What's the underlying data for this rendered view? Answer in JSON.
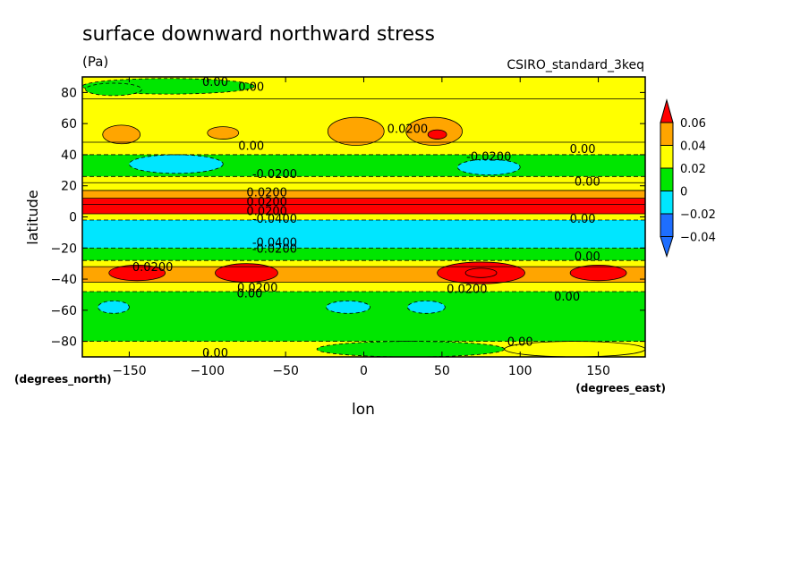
{
  "chart_data": {
    "type": "heatmap",
    "title": "surface downward northward stress",
    "units": "(Pa)",
    "dataset": "CSIRO_standard_3keq",
    "xlabel": "lon",
    "ylabel": "latitude",
    "x_units": "(degrees_east)",
    "y_units": "(degrees_north)",
    "xlim": [
      -180,
      180
    ],
    "ylim": [
      -90,
      90
    ],
    "x_ticks": [
      -150,
      -100,
      -50,
      0,
      50,
      100,
      150
    ],
    "y_ticks": [
      80,
      60,
      40,
      20,
      0,
      -20,
      -40,
      -60,
      -80
    ],
    "colorbar": {
      "labels": [
        "0.06",
        "0.04",
        "0.02",
        "0",
        "−0.02",
        "−0.04"
      ],
      "levels": [
        -0.04,
        -0.02,
        0,
        0.02,
        0.04,
        0.06
      ],
      "colors": [
        "#1e6eff",
        "#00e6ff",
        "#00e600",
        "#ffff00",
        "#ffa500",
        "#ff0000"
      ],
      "extend": "both"
    },
    "bands": [
      {
        "lat_top": 90,
        "lat_bottom": 76,
        "value": 0.0
      },
      {
        "lat_top": 76,
        "lat_bottom": 48,
        "value": 0.01
      },
      {
        "lat_top": 48,
        "lat_bottom": 40,
        "value": 0.0
      },
      {
        "lat_top": 40,
        "lat_bottom": 26,
        "value": -0.01
      },
      {
        "lat_top": 26,
        "lat_bottom": 22,
        "value": 0.0
      },
      {
        "lat_top": 22,
        "lat_bottom": 17,
        "value": 0.01
      },
      {
        "lat_top": 17,
        "lat_bottom": 12,
        "value": 0.03
      },
      {
        "lat_top": 12,
        "lat_bottom": 8,
        "value": 0.045
      },
      {
        "lat_top": 8,
        "lat_bottom": 2,
        "value": 0.065
      },
      {
        "lat_top": 2,
        "lat_bottom": -2,
        "value": 0.0
      },
      {
        "lat_top": -2,
        "lat_bottom": -20,
        "value": -0.03
      },
      {
        "lat_top": -20,
        "lat_bottom": -28,
        "value": -0.01
      },
      {
        "lat_top": -28,
        "lat_bottom": -32,
        "value": 0.01
      },
      {
        "lat_top": -32,
        "lat_bottom": -42,
        "value": 0.03
      },
      {
        "lat_top": -42,
        "lat_bottom": -48,
        "value": 0.01
      },
      {
        "lat_top": -48,
        "lat_bottom": -80,
        "value": -0.01
      },
      {
        "lat_top": -80,
        "lat_bottom": -90,
        "value": 0.0
      }
    ],
    "features": [
      {
        "lon": -155,
        "lat": 53,
        "rx": 12,
        "ry": 6,
        "value": 0.03
      },
      {
        "lon": -90,
        "lat": 54,
        "rx": 10,
        "ry": 4,
        "value": 0.03
      },
      {
        "lon": -5,
        "lat": 55,
        "rx": 18,
        "ry": 9,
        "value": 0.03
      },
      {
        "lon": 45,
        "lat": 55,
        "rx": 18,
        "ry": 9,
        "value": 0.03
      },
      {
        "lon": 47,
        "lat": 53,
        "rx": 6,
        "ry": 3,
        "value": 0.05
      },
      {
        "lon": -120,
        "lat": 34,
        "rx": 30,
        "ry": 6,
        "value": -0.03
      },
      {
        "lon": 80,
        "lat": 32,
        "rx": 20,
        "ry": 5,
        "value": -0.03
      },
      {
        "lon": -145,
        "lat": -36,
        "rx": 18,
        "ry": 5,
        "value": 0.05
      },
      {
        "lon": -75,
        "lat": -36,
        "rx": 20,
        "ry": 6,
        "value": 0.05
      },
      {
        "lon": 75,
        "lat": -36,
        "rx": 28,
        "ry": 7,
        "value": 0.05
      },
      {
        "lon": 75,
        "lat": -36,
        "rx": 10,
        "ry": 3,
        "value": 0.065
      },
      {
        "lon": 150,
        "lat": -36,
        "rx": 18,
        "ry": 5,
        "value": 0.05
      },
      {
        "lon": -160,
        "lat": -58,
        "rx": 10,
        "ry": 4,
        "value": -0.03
      },
      {
        "lon": -10,
        "lat": -58,
        "rx": 14,
        "ry": 4,
        "value": -0.03
      },
      {
        "lon": 40,
        "lat": -58,
        "rx": 12,
        "ry": 4,
        "value": -0.03
      },
      {
        "lon": 30,
        "lat": -85,
        "rx": 60,
        "ry": 5,
        "value": -0.01
      },
      {
        "lon": -125,
        "lat": 84,
        "rx": 55,
        "ry": 5,
        "value": -0.01
      },
      {
        "lon": -160,
        "lat": 82,
        "rx": 18,
        "ry": 4,
        "value": -0.01
      },
      {
        "lon": 135,
        "lat": -85,
        "rx": 45,
        "ry": 5,
        "value": 0.01
      }
    ],
    "contour_labels": [
      {
        "text": "0.00",
        "lon": -95,
        "lat": 87
      },
      {
        "text": "0.00",
        "lon": -72,
        "lat": 84
      },
      {
        "text": "0.0200",
        "lon": 28,
        "lat": 57
      },
      {
        "text": "0.00",
        "lon": -72,
        "lat": 46
      },
      {
        "text": "0.00",
        "lon": 140,
        "lat": 44
      },
      {
        "text": "-0.0200",
        "lon": 80,
        "lat": 39
      },
      {
        "text": "-0.0200",
        "lon": -57,
        "lat": 28
      },
      {
        "text": "0.00",
        "lon": 143,
        "lat": 23
      },
      {
        "text": "0.0200",
        "lon": -62,
        "lat": 16
      },
      {
        "text": "0.0200",
        "lon": -62,
        "lat": 10
      },
      {
        "text": "0.0200",
        "lon": -62,
        "lat": 4
      },
      {
        "text": "0.00",
        "lon": 140,
        "lat": -1
      },
      {
        "text": "-0.0400",
        "lon": -57,
        "lat": -1
      },
      {
        "text": "-0.0400",
        "lon": -57,
        "lat": -16
      },
      {
        "text": "-0.0200",
        "lon": -57,
        "lat": -20
      },
      {
        "text": "0.0200",
        "lon": -135,
        "lat": -32
      },
      {
        "text": "0.00",
        "lon": 143,
        "lat": -25
      },
      {
        "text": "0.0200",
        "lon": -68,
        "lat": -45
      },
      {
        "text": "0.00",
        "lon": -73,
        "lat": -49
      },
      {
        "text": "0.0200",
        "lon": 66,
        "lat": -46
      },
      {
        "text": "0.00",
        "lon": 130,
        "lat": -51
      },
      {
        "text": "0.00",
        "lon": 100,
        "lat": -80
      },
      {
        "text": "0.00",
        "lon": -95,
        "lat": -87
      }
    ]
  }
}
